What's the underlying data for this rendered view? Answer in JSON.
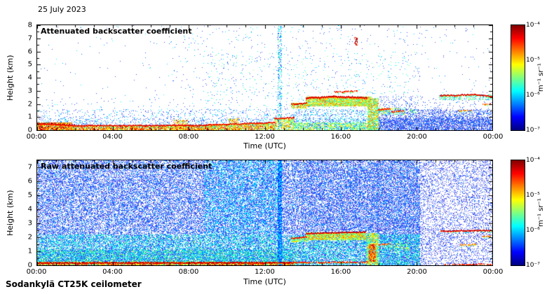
{
  "header": {
    "date": "25 July 2023"
  },
  "footer": {
    "label": "Sodankylä CT25K ceilometer"
  },
  "colors": {
    "jet_stops": [
      "#000080",
      "#0000ff",
      "#00ffff",
      "#ffff00",
      "#ff0000",
      "#800000"
    ]
  },
  "chart_data": [
    {
      "type": "heatmap",
      "title": "Attenuated backscatter coefficient",
      "xlabel": "Time (UTC)",
      "ylabel": "Height (km)",
      "x_ticks": [
        "00:00",
        "04:00",
        "08:00",
        "12:00",
        "16:00",
        "20:00",
        "00:00"
      ],
      "x_range_hours": [
        0,
        24
      ],
      "y_ticks": [
        8,
        7,
        6,
        5,
        4,
        3,
        2,
        1,
        0
      ],
      "y_range_km": [
        0,
        8
      ],
      "grid": false,
      "colorbar": {
        "label": "m⁻¹ sr⁻¹",
        "ticks": [
          "10⁻⁴",
          "10⁻⁵",
          "10⁻⁶",
          "10⁻⁷"
        ],
        "min": 1e-07,
        "max": 0.0001,
        "scale": "log",
        "colormap": "jet"
      },
      "render": {
        "seed": 7,
        "background": "#ffffff",
        "noise": {
          "density": 0.012,
          "vmin": 0.05,
          "vmax": 0.4
        },
        "noise_modifiers": [
          {
            "t0": 0,
            "t1": 24,
            "h0": 0,
            "h1": 1.6,
            "mult": 8
          },
          {
            "t0": 0,
            "t1": 24,
            "h0": 0,
            "h1": 0.9,
            "mult": 1.8
          },
          {
            "t0": 9,
            "t1": 20,
            "h0": 1.6,
            "h1": 6,
            "mult": 2.5,
            "vmin": 0.08,
            "vmax": 0.5
          },
          {
            "t0": 0,
            "t1": 7,
            "h0": 2.5,
            "h1": 8,
            "mult": 0.3
          },
          {
            "t0": 20.3,
            "t1": 24,
            "h0": 3,
            "h1": 8,
            "mult": 0.4
          },
          {
            "t0": 13.5,
            "t1": 18,
            "h0": 0,
            "h1": 1.9,
            "mult": 2,
            "vmin": 0.05,
            "vmax": 0.45
          },
          {
            "t0": 18,
            "t1": 24,
            "h0": 0,
            "h1": 2.6,
            "mult": 4,
            "vmin": 0.02,
            "vmax": 0.28
          }
        ],
        "blobs": [
          {
            "t0": 0,
            "t1": 1.8,
            "h0": 0,
            "h1": 0.55,
            "d": 0.9,
            "v0": 0.55,
            "v1": 1.0
          },
          {
            "t0": 1.8,
            "t1": 9,
            "h0": 0,
            "h1": 0.32,
            "d": 0.85,
            "v0": 0.5,
            "v1": 0.95
          },
          {
            "t0": 9,
            "t1": 12.5,
            "h0": 0,
            "h1": 0.45,
            "d": 0.8,
            "v0": 0.45,
            "v1": 0.9
          },
          {
            "t0": 12.5,
            "t1": 13.5,
            "h0": 0,
            "h1": 0.85,
            "d": 0.6,
            "v0": 0.4,
            "v1": 0.8
          },
          {
            "t0": 13.5,
            "t1": 17.6,
            "h0": 0,
            "h1": 0.55,
            "d": 0.55,
            "v0": 0.35,
            "v1": 0.7
          },
          {
            "t0": 7.2,
            "t1": 7.9,
            "h0": 0,
            "h1": 0.75,
            "d": 0.5,
            "v0": 0.5,
            "v1": 0.9
          },
          {
            "t0": 10.1,
            "t1": 10.6,
            "h0": 0,
            "h1": 0.9,
            "d": 0.5,
            "v0": 0.45,
            "v1": 0.85
          },
          {
            "t0": 13.4,
            "t1": 14.2,
            "h0": 1.75,
            "h1": 2.05,
            "d": 0.8,
            "v0": 0.45,
            "v1": 0.8
          },
          {
            "t0": 14.2,
            "t1": 17.6,
            "h0": 1.9,
            "h1": 2.55,
            "d": 0.92,
            "v0": 0.38,
            "v1": 0.78
          },
          {
            "t0": 17.45,
            "t1": 17.95,
            "h0": 0,
            "h1": 2.45,
            "d": 0.75,
            "v0": 0.35,
            "v1": 0.8
          },
          {
            "t0": 18.0,
            "t1": 19.35,
            "h0": 1.25,
            "h1": 1.7,
            "d": 0.45,
            "v0": 0.3,
            "v1": 0.7
          },
          {
            "t0": 19.6,
            "t1": 20.0,
            "h0": 1.3,
            "h1": 1.55,
            "d": 0.3,
            "v0": 0.3,
            "v1": 0.6
          },
          {
            "t0": 21.2,
            "t1": 24,
            "h0": 2.35,
            "h1": 2.72,
            "d": 0.35,
            "v0": 0.25,
            "v1": 0.6
          },
          {
            "t0": 16.72,
            "t1": 16.84,
            "h0": 6.55,
            "h1": 7.05,
            "d": 0.5,
            "v0": 0.8,
            "v1": 1.0
          },
          {
            "t0": 12.7,
            "t1": 12.85,
            "h0": 0,
            "h1": 7.9,
            "d": 0.3,
            "v0": 0.15,
            "v1": 0.5
          }
        ],
        "lines": [
          {
            "t0": 0,
            "t1": 2,
            "h0": 0.55,
            "h1": 0.4,
            "v": 0.96,
            "th": 0.14
          },
          {
            "t0": 2,
            "t1": 9,
            "h0": 0.38,
            "h1": 0.42,
            "v": 0.95,
            "th": 0.1
          },
          {
            "t0": 9,
            "t1": 12.5,
            "h0": 0.45,
            "h1": 0.62,
            "v": 0.93,
            "th": 0.1
          },
          {
            "t0": 12.5,
            "t1": 13.5,
            "h0": 0.92,
            "h1": 1.0,
            "v": 0.93,
            "th": 0.1
          },
          {
            "t0": 13.4,
            "t1": 14.2,
            "h0": 2.02,
            "h1": 2.1,
            "v": 0.95,
            "th": 0.12
          },
          {
            "t0": 14.2,
            "t1": 15.6,
            "h0": 2.5,
            "h1": 2.62,
            "v": 0.97,
            "th": 0.14
          },
          {
            "t0": 15.6,
            "t1": 17.35,
            "h0": 2.62,
            "h1": 2.52,
            "v": 0.97,
            "th": 0.14
          },
          {
            "t0": 15.7,
            "t1": 16.9,
            "h0": 2.95,
            "h1": 3.05,
            "v": 0.9,
            "th": 0.09,
            "gaps": 0.3
          },
          {
            "t0": 18.0,
            "t1": 18.6,
            "h0": 1.6,
            "h1": 1.68,
            "v": 0.9,
            "th": 0.1
          },
          {
            "t0": 18.7,
            "t1": 19.3,
            "h0": 1.45,
            "h1": 1.5,
            "v": 0.88,
            "th": 0.08,
            "gaps": 0.2
          },
          {
            "t0": 21.25,
            "t1": 23.1,
            "h0": 2.68,
            "h1": 2.75,
            "v": 0.95,
            "th": 0.12
          },
          {
            "t0": 23.1,
            "t1": 24,
            "h0": 2.75,
            "h1": 2.62,
            "v": 0.95,
            "th": 0.12
          },
          {
            "t0": 22.2,
            "t1": 22.9,
            "h0": 1.5,
            "h1": 1.55,
            "v": 0.8,
            "th": 0.07,
            "gaps": 0.35
          },
          {
            "t0": 23.5,
            "t1": 24,
            "h0": 2.0,
            "h1": 2.06,
            "v": 0.85,
            "th": 0.07,
            "gaps": 0.3
          }
        ]
      }
    },
    {
      "type": "heatmap",
      "title": "Raw attenuated backscatter coefficient",
      "xlabel": "Time (UTC)",
      "ylabel": "Height (km)",
      "x_ticks": [
        "00:00",
        "04:00",
        "08:00",
        "12:00",
        "16:00",
        "20:00",
        "00:00"
      ],
      "x_range_hours": [
        0,
        24
      ],
      "y_ticks": [
        7,
        6,
        5,
        4,
        3,
        2,
        1,
        0
      ],
      "y_range_km": [
        0,
        7.5
      ],
      "grid": false,
      "colorbar": {
        "label": "m⁻¹ sr⁻¹",
        "ticks": [
          "10⁻⁴",
          "10⁻⁵",
          "10⁻⁶",
          "10⁻⁷"
        ],
        "min": 1e-07,
        "max": 0.0001,
        "scale": "log",
        "colormap": "jet"
      },
      "render": {
        "seed": 13,
        "background": "#ffffff",
        "noise": {
          "density": 0.5,
          "vmin": 0.03,
          "vmax": 0.3
        },
        "noise_modifiers": [
          {
            "t0": 0,
            "t1": 20.2,
            "h0": 0,
            "h1": 2.2,
            "mult": 1.35,
            "vmin": 0.06,
            "vmax": 0.5
          },
          {
            "t0": 0,
            "t1": 13.6,
            "h0": 0,
            "h1": 1.1,
            "mult": 1.3,
            "vmin": 0.1,
            "vmax": 0.55
          },
          {
            "t0": 20.2,
            "t1": 24,
            "h0": 0,
            "h1": 7.5,
            "mult": 0.5,
            "vmin": 0.02,
            "vmax": 0.24
          },
          {
            "t0": 8.8,
            "t1": 12.7,
            "h0": 2.2,
            "h1": 7.5,
            "mult": 1.25,
            "vmin": 0.05,
            "vmax": 0.4
          },
          {
            "t0": 13.9,
            "t1": 18.1,
            "h0": 2.4,
            "h1": 7.5,
            "mult": 1.15
          },
          {
            "t0": 17.9,
            "t1": 20.2,
            "h0": 0,
            "h1": 7.5,
            "mult": 1.2
          }
        ],
        "blobs": [
          {
            "t0": 0,
            "t1": 13.5,
            "h0": 0,
            "h1": 0.22,
            "d": 0.9,
            "v0": 0.55,
            "v1": 1.0
          },
          {
            "t0": 13.4,
            "t1": 14.2,
            "h0": 1.7,
            "h1": 2.0,
            "d": 0.7,
            "v0": 0.4,
            "v1": 0.7
          },
          {
            "t0": 14.2,
            "t1": 17.3,
            "h0": 1.85,
            "h1": 2.35,
            "d": 0.92,
            "v0": 0.4,
            "v1": 0.78
          },
          {
            "t0": 17.4,
            "t1": 17.95,
            "h0": 0,
            "h1": 2.3,
            "d": 0.8,
            "v0": 0.35,
            "v1": 0.75
          },
          {
            "t0": 17.5,
            "t1": 17.8,
            "h0": 0.3,
            "h1": 1.5,
            "d": 0.8,
            "v0": 0.65,
            "v1": 0.95
          },
          {
            "t0": 18.6,
            "t1": 19.6,
            "h0": 1.1,
            "h1": 1.6,
            "d": 0.25,
            "v0": 0.35,
            "v1": 0.7
          },
          {
            "t0": 12.7,
            "t1": 12.85,
            "h0": 0,
            "h1": 7.5,
            "d": 0.85,
            "v0": 0.1,
            "v1": 0.4
          }
        ],
        "lines": [
          {
            "t0": 0,
            "t1": 13.5,
            "h0": 0.2,
            "h1": 0.22,
            "v": 0.97,
            "th": 0.1
          },
          {
            "t0": 13.5,
            "t1": 17.4,
            "h0": 0.24,
            "h1": 0.26,
            "v": 0.9,
            "th": 0.08,
            "gaps": 0.15
          },
          {
            "t0": 14.2,
            "t1": 17.3,
            "h0": 2.32,
            "h1": 2.42,
            "v": 0.97,
            "th": 0.12
          },
          {
            "t0": 13.4,
            "t1": 14.2,
            "h0": 1.98,
            "h1": 2.06,
            "v": 0.92,
            "th": 0.1
          },
          {
            "t0": 18.0,
            "t1": 18.5,
            "h0": 1.5,
            "h1": 1.58,
            "v": 0.85,
            "th": 0.08,
            "gaps": 0.25
          },
          {
            "t0": 21.3,
            "t1": 24,
            "h0": 2.48,
            "h1": 2.54,
            "v": 0.96,
            "th": 0.12
          },
          {
            "t0": 22.3,
            "t1": 23.1,
            "h0": 1.5,
            "h1": 1.55,
            "v": 0.8,
            "th": 0.07,
            "gaps": 0.35
          },
          {
            "t0": 23.5,
            "t1": 24,
            "h0": 2.1,
            "h1": 2.16,
            "v": 0.82,
            "th": 0.07,
            "gaps": 0.3
          },
          {
            "t0": 21.5,
            "t1": 24,
            "h0": 0.1,
            "h1": 0.1,
            "v": 0.9,
            "th": 0.07,
            "gaps": 0.3
          }
        ]
      }
    }
  ]
}
